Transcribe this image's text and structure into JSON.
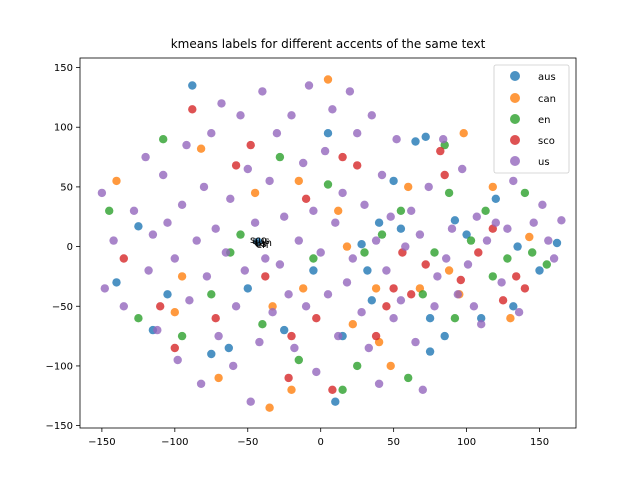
{
  "chart_data": {
    "type": "scatter",
    "title": "kmeans labels for different accents of the same text",
    "xlabel": "",
    "ylabel": "",
    "xlim": [
      -165,
      175
    ],
    "ylim": [
      -152,
      158
    ],
    "xticks": [
      -150,
      -100,
      -50,
      0,
      50,
      100,
      150
    ],
    "yticks": [
      -150,
      -100,
      -50,
      0,
      50,
      100,
      150
    ],
    "tick_labels_x": [
      "−150",
      "−100",
      "−50",
      "0",
      "50",
      "100",
      "150"
    ],
    "tick_labels_y": [
      "−150",
      "−100",
      "−50",
      "0",
      "50",
      "100",
      "150"
    ],
    "grid": false,
    "legend": {
      "location": "top-right",
      "entries": [
        "aus",
        "can",
        "en",
        "sco",
        "us"
      ]
    },
    "series": [
      {
        "name": "aus",
        "color": "#1f77b4",
        "points": [
          [
            -125,
            17
          ],
          [
            -105,
            -40
          ],
          [
            -75,
            -90
          ],
          [
            -50,
            -35
          ],
          [
            -43,
            4
          ],
          [
            -25,
            -70
          ],
          [
            -5,
            -20
          ],
          [
            10,
            -130
          ],
          [
            15,
            -75
          ],
          [
            32,
            -20
          ],
          [
            35,
            -45
          ],
          [
            50,
            55
          ],
          [
            65,
            88
          ],
          [
            72,
            92
          ],
          [
            75,
            -88
          ],
          [
            85,
            -75
          ],
          [
            92,
            22
          ],
          [
            100,
            10
          ],
          [
            110,
            -60
          ],
          [
            135,
            0
          ],
          [
            150,
            -20
          ],
          [
            162,
            3
          ],
          [
            -140,
            -30
          ],
          [
            -88,
            135
          ],
          [
            -63,
            -85
          ],
          [
            5,
            95
          ],
          [
            40,
            20
          ],
          [
            55,
            15
          ],
          [
            120,
            40
          ],
          [
            132,
            -50
          ],
          [
            -115,
            -70
          ],
          [
            28,
            2
          ],
          [
            75,
            -60
          ]
        ]
      },
      {
        "name": "can",
        "color": "#ff7f0e",
        "points": [
          [
            -140,
            55
          ],
          [
            -100,
            -55
          ],
          [
            -70,
            -110
          ],
          [
            -45,
            45
          ],
          [
            -35,
            -135
          ],
          [
            -20,
            -120
          ],
          [
            -12,
            -35
          ],
          [
            5,
            140
          ],
          [
            18,
            0
          ],
          [
            22,
            -65
          ],
          [
            38,
            -35
          ],
          [
            60,
            50
          ],
          [
            68,
            -35
          ],
          [
            88,
            -20
          ],
          [
            98,
            95
          ],
          [
            118,
            50
          ],
          [
            130,
            -60
          ],
          [
            143,
            8
          ],
          [
            -82,
            82
          ],
          [
            -33,
            -50
          ],
          [
            12,
            30
          ],
          [
            48,
            -100
          ],
          [
            -15,
            55
          ],
          [
            95,
            -40
          ],
          [
            -95,
            -25
          ],
          [
            40,
            -80
          ]
        ]
      },
      {
        "name": "en",
        "color": "#2ca02c",
        "points": [
          [
            -145,
            30
          ],
          [
            -125,
            -60
          ],
          [
            -95,
            -75
          ],
          [
            -75,
            -40
          ],
          [
            -55,
            10
          ],
          [
            -40,
            -65
          ],
          [
            -15,
            -95
          ],
          [
            -5,
            -10
          ],
          [
            15,
            -120
          ],
          [
            25,
            -100
          ],
          [
            30,
            -5
          ],
          [
            42,
            10
          ],
          [
            55,
            30
          ],
          [
            70,
            -40
          ],
          [
            78,
            -5
          ],
          [
            88,
            45
          ],
          [
            92,
            -60
          ],
          [
            103,
            5
          ],
          [
            113,
            30
          ],
          [
            128,
            -10
          ],
          [
            140,
            45
          ],
          [
            155,
            -15
          ],
          [
            -108,
            90
          ],
          [
            -62,
            -5
          ],
          [
            -28,
            75
          ],
          [
            5,
            52
          ],
          [
            60,
            -110
          ],
          [
            85,
            85
          ],
          [
            118,
            -25
          ],
          [
            145,
            -5
          ]
        ]
      },
      {
        "name": "sco",
        "color": "#d62728",
        "points": [
          [
            -135,
            -10
          ],
          [
            -110,
            -50
          ],
          [
            -88,
            115
          ],
          [
            -72,
            -60
          ],
          [
            -58,
            68
          ],
          [
            -38,
            -25
          ],
          [
            -22,
            -110
          ],
          [
            -10,
            40
          ],
          [
            -3,
            -60
          ],
          [
            8,
            -120
          ],
          [
            25,
            68
          ],
          [
            38,
            -75
          ],
          [
            45,
            -50
          ],
          [
            56,
            -5
          ],
          [
            62,
            -40
          ],
          [
            72,
            -15
          ],
          [
            82,
            80
          ],
          [
            96,
            -28
          ],
          [
            108,
            -5
          ],
          [
            118,
            15
          ],
          [
            125,
            -45
          ],
          [
            134,
            -25
          ],
          [
            140,
            -35
          ],
          [
            -100,
            -85
          ],
          [
            -48,
            85
          ],
          [
            -20,
            -75
          ],
          [
            15,
            75
          ],
          [
            50,
            -35
          ],
          [
            85,
            60
          ]
        ]
      },
      {
        "name": "us",
        "color": "#9467bd",
        "points": [
          [
            -150,
            45
          ],
          [
            -148,
            -35
          ],
          [
            -142,
            5
          ],
          [
            -135,
            -50
          ],
          [
            -128,
            30
          ],
          [
            -120,
            75
          ],
          [
            -118,
            -20
          ],
          [
            -115,
            10
          ],
          [
            -112,
            -70
          ],
          [
            -108,
            60
          ],
          [
            -105,
            20
          ],
          [
            -100,
            -10
          ],
          [
            -98,
            -95
          ],
          [
            -95,
            35
          ],
          [
            -92,
            85
          ],
          [
            -90,
            -45
          ],
          [
            -85,
            5
          ],
          [
            -82,
            -115
          ],
          [
            -80,
            50
          ],
          [
            -78,
            -25
          ],
          [
            -75,
            95
          ],
          [
            -72,
            15
          ],
          [
            -70,
            -75
          ],
          [
            -68,
            120
          ],
          [
            -65,
            -5
          ],
          [
            -62,
            40
          ],
          [
            -60,
            -100
          ],
          [
            -58,
            -50
          ],
          [
            -55,
            110
          ],
          [
            -52,
            -20
          ],
          [
            -50,
            65
          ],
          [
            -48,
            -130
          ],
          [
            -45,
            20
          ],
          [
            -42,
            -80
          ],
          [
            -40,
            130
          ],
          [
            -38,
            -10
          ],
          [
            -35,
            55
          ],
          [
            -33,
            -55
          ],
          [
            -30,
            95
          ],
          [
            -28,
            -15
          ],
          [
            -25,
            25
          ],
          [
            -22,
            -40
          ],
          [
            -20,
            110
          ],
          [
            -18,
            -85
          ],
          [
            -15,
            5
          ],
          [
            -12,
            70
          ],
          [
            -10,
            -50
          ],
          [
            -8,
            135
          ],
          [
            -5,
            30
          ],
          [
            -3,
            -105
          ],
          [
            0,
            -5
          ],
          [
            3,
            80
          ],
          [
            5,
            -40
          ],
          [
            8,
            115
          ],
          [
            10,
            20
          ],
          [
            12,
            -75
          ],
          [
            15,
            45
          ],
          [
            18,
            -30
          ],
          [
            20,
            130
          ],
          [
            22,
            -10
          ],
          [
            25,
            95
          ],
          [
            28,
            -55
          ],
          [
            30,
            35
          ],
          [
            33,
            -85
          ],
          [
            35,
            110
          ],
          [
            38,
            5
          ],
          [
            40,
            -115
          ],
          [
            42,
            60
          ],
          [
            45,
            -20
          ],
          [
            48,
            25
          ],
          [
            50,
            -60
          ],
          [
            52,
            90
          ],
          [
            55,
            -45
          ],
          [
            58,
            0
          ],
          [
            62,
            30
          ],
          [
            65,
            -80
          ],
          [
            68,
            10
          ],
          [
            70,
            -120
          ],
          [
            74,
            50
          ],
          [
            78,
            -50
          ],
          [
            80,
            -25
          ],
          [
            84,
            90
          ],
          [
            86,
            -10
          ],
          [
            90,
            15
          ],
          [
            94,
            -40
          ],
          [
            97,
            65
          ],
          [
            101,
            -15
          ],
          [
            105,
            -50
          ],
          [
            107,
            25
          ],
          [
            110,
            -65
          ],
          [
            114,
            5
          ],
          [
            120,
            20
          ],
          [
            124,
            -30
          ],
          [
            128,
            15
          ],
          [
            132,
            55
          ],
          [
            136,
            -55
          ],
          [
            146,
            20
          ],
          [
            152,
            35
          ],
          [
            156,
            5
          ],
          [
            165,
            22
          ],
          [
            160,
            -10
          ]
        ]
      }
    ],
    "annotations": [
      "aus",
      "can",
      "en",
      "sco",
      "us"
    ]
  }
}
